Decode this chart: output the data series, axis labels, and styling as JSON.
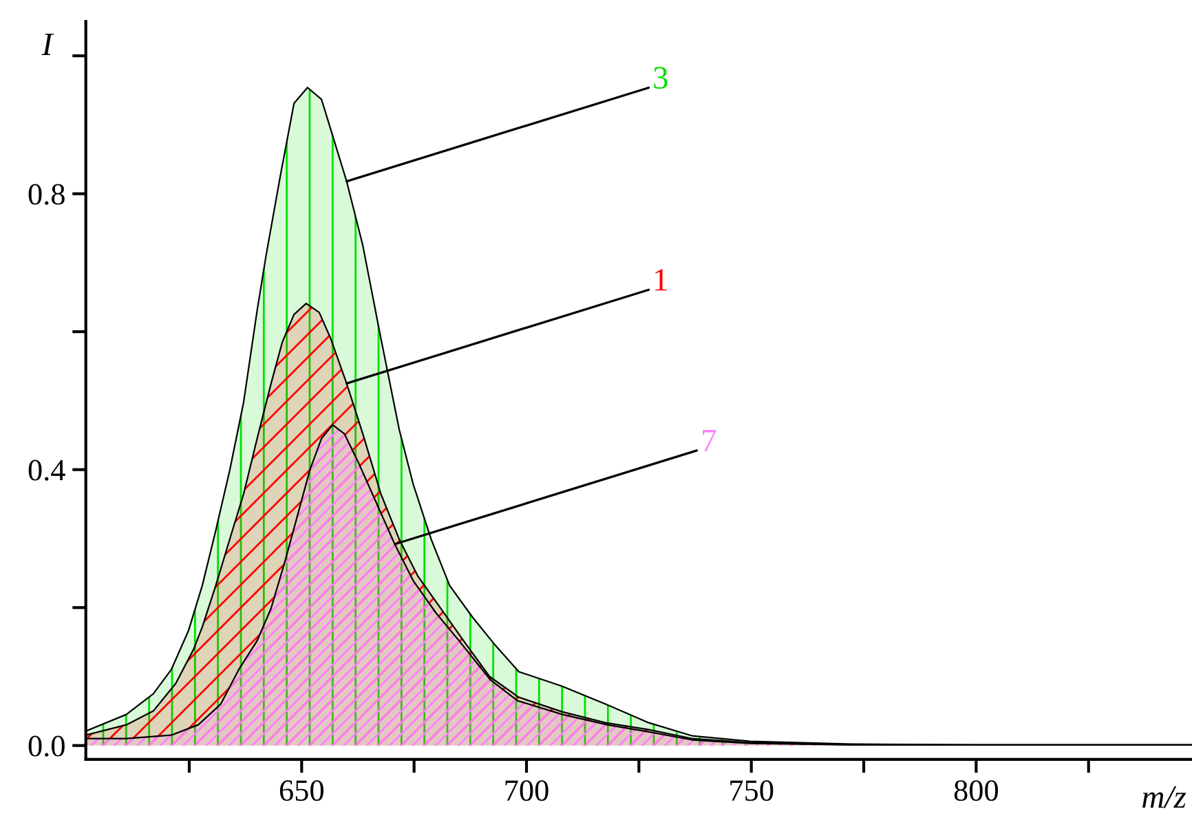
{
  "chart_data": {
    "type": "area",
    "xlabel": "m/z",
    "ylabel": "I",
    "xlim": [
      602,
      848
    ],
    "ylim": [
      -0.02,
      1.05
    ],
    "xticks": [
      {
        "value": 625,
        "label": null
      },
      650,
      {
        "value": 675,
        "label": null
      },
      700,
      {
        "value": 725,
        "label": null
      },
      750,
      {
        "value": 775,
        "label": null
      },
      800,
      {
        "value": 825,
        "label": null
      }
    ],
    "yticks": [
      {
        "value": 0,
        "label": "0.0"
      },
      {
        "value": 0.2,
        "label": null
      },
      0.4,
      {
        "value": 0.6,
        "label": null
      },
      0.8,
      {
        "value": 1.0,
        "label": null
      }
    ],
    "grid": false,
    "legend": false,
    "series": [
      {
        "name": "3",
        "color": "#00e000",
        "x": [
          602,
          611,
          617,
          621,
          624.8,
          627.9,
          630.9,
          634.0,
          637.1,
          640.1,
          642.1,
          645.2,
          648.3,
          651.3,
          654.4,
          656.9,
          660.0,
          663.6,
          667.6,
          671.7,
          674.8,
          678.8,
          682.9,
          688.0,
          693.1,
          698.3,
          707.9,
          717.6,
          727.2,
          736.9,
          749.8,
          772.3,
          800,
          848
        ],
        "values": [
          0.021,
          0.045,
          0.075,
          0.11,
          0.166,
          0.232,
          0.312,
          0.399,
          0.498,
          0.631,
          0.711,
          0.824,
          0.931,
          0.954,
          0.937,
          0.884,
          0.818,
          0.725,
          0.591,
          0.458,
          0.379,
          0.299,
          0.232,
          0.186,
          0.145,
          0.107,
          0.086,
          0.06,
          0.033,
          0.014,
          0.006,
          0.002,
          0.001,
          0.001
        ]
      },
      {
        "name": "1",
        "color": "#ff0000",
        "x": [
          602,
          611,
          617,
          622,
          626,
          627.9,
          630.9,
          634.0,
          637.1,
          640.1,
          643.2,
          645.7,
          648.3,
          651.0,
          653.9,
          656.4,
          660.0,
          663.6,
          667.6,
          671.7,
          675.8,
          680.9,
          686.0,
          691.8,
          698.3,
          707.9,
          717.6,
          727.2,
          736.9,
          749.8,
          772.3,
          848
        ],
        "values": [
          0.015,
          0.03,
          0.05,
          0.09,
          0.14,
          0.172,
          0.232,
          0.299,
          0.365,
          0.445,
          0.525,
          0.585,
          0.625,
          0.641,
          0.628,
          0.591,
          0.525,
          0.452,
          0.365,
          0.299,
          0.246,
          0.199,
          0.152,
          0.1,
          0.07,
          0.049,
          0.033,
          0.023,
          0.01,
          0.004,
          0.001,
          0.001
        ]
      },
      {
        "name": "7",
        "color": "#ff80ff",
        "x": [
          602,
          611,
          621,
          627,
          632,
          636,
          640.1,
          643.2,
          646.2,
          649.3,
          651.8,
          654.4,
          656.9,
          659.5,
          662.5,
          666.6,
          670.7,
          674.8,
          679.9,
          685.0,
          692,
          698,
          708,
          718,
          727,
          737,
          750,
          772,
          848
        ],
        "values": [
          0.01,
          0.01,
          0.015,
          0.03,
          0.06,
          0.11,
          0.152,
          0.199,
          0.265,
          0.339,
          0.399,
          0.445,
          0.465,
          0.452,
          0.412,
          0.352,
          0.292,
          0.239,
          0.192,
          0.152,
          0.095,
          0.065,
          0.045,
          0.03,
          0.02,
          0.008,
          0.003,
          0.001,
          0.001
        ]
      }
    ]
  }
}
